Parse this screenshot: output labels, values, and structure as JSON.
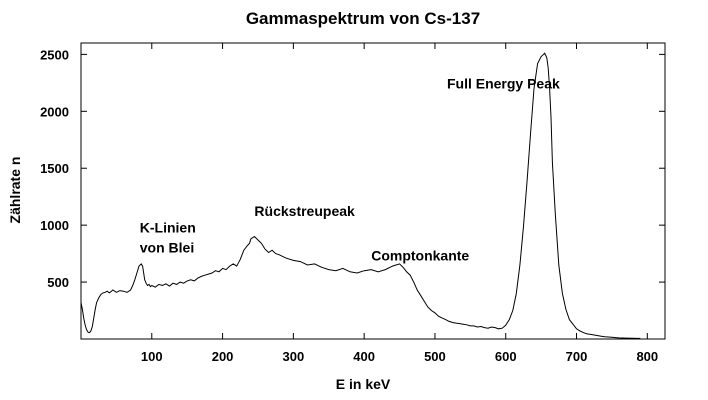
{
  "chart_data": {
    "type": "line",
    "title": "Gammaspektrum von Cs-137",
    "xlabel": "E in keV",
    "ylabel": "Zählrate n",
    "xlim": [
      0,
      825
    ],
    "ylim": [
      0,
      2600
    ],
    "xticks": [
      100,
      200,
      300,
      400,
      500,
      600,
      700,
      800
    ],
    "yticks": [
      500,
      1000,
      1500,
      2000,
      2500
    ],
    "grid": false,
    "annotations": [
      {
        "lines": [
          "Full Energy Peak"
        ],
        "x": 517,
        "y": 2200
      },
      {
        "lines": [
          "K-Linien",
          "von Blei"
        ],
        "x": 83,
        "y": 935
      },
      {
        "lines": [
          "Rückstreupeak"
        ],
        "x": 245,
        "y": 1080
      },
      {
        "lines": [
          "Comptonkante"
        ],
        "x": 410,
        "y": 690
      }
    ],
    "series": [
      {
        "color": "#000000",
        "x": [
          0,
          2,
          4,
          6,
          8,
          10,
          12,
          14,
          16,
          18,
          20,
          22,
          25,
          28,
          31,
          34,
          37,
          40,
          45,
          50,
          55,
          60,
          65,
          70,
          73,
          76,
          79,
          82,
          85,
          87,
          88,
          89,
          90,
          92,
          94,
          96,
          98,
          100,
          105,
          110,
          115,
          120,
          125,
          130,
          135,
          140,
          145,
          150,
          155,
          160,
          165,
          170,
          175,
          180,
          185,
          190,
          195,
          200,
          205,
          210,
          215,
          220,
          225,
          230,
          235,
          238,
          240,
          245,
          250,
          255,
          260,
          265,
          270,
          275,
          280,
          290,
          300,
          310,
          320,
          330,
          340,
          350,
          360,
          370,
          380,
          390,
          400,
          410,
          420,
          430,
          440,
          445,
          450,
          455,
          460,
          465,
          470,
          475,
          480,
          485,
          490,
          495,
          500,
          505,
          510,
          515,
          520,
          525,
          530,
          535,
          540,
          545,
          550,
          555,
          560,
          565,
          570,
          575,
          580,
          585,
          590,
          595,
          600,
          605,
          610,
          615,
          620,
          625,
          630,
          635,
          640,
          645,
          650,
          655,
          658,
          660,
          662,
          664,
          666,
          670,
          675,
          680,
          685,
          690,
          695,
          700,
          705,
          710,
          715,
          720,
          725,
          730,
          735,
          740,
          745,
          750,
          755,
          760,
          770,
          780,
          790
        ],
        "y": [
          320,
          260,
          180,
          120,
          80,
          60,
          55,
          70,
          110,
          180,
          260,
          320,
          360,
          390,
          405,
          410,
          420,
          405,
          430,
          410,
          425,
          420,
          410,
          430,
          470,
          520,
          580,
          640,
          660,
          640,
          600,
          560,
          520,
          490,
          470,
          480,
          460,
          470,
          455,
          480,
          470,
          485,
          465,
          490,
          480,
          500,
          490,
          510,
          520,
          510,
          535,
          550,
          560,
          570,
          580,
          600,
          590,
          620,
          610,
          640,
          660,
          640,
          700,
          780,
          820,
          840,
          880,
          900,
          870,
          840,
          790,
          760,
          780,
          750,
          740,
          710,
          690,
          680,
          650,
          660,
          630,
          610,
          600,
          620,
          590,
          580,
          600,
          610,
          590,
          610,
          640,
          650,
          660,
          630,
          590,
          560,
          500,
          430,
          380,
          330,
          280,
          250,
          230,
          200,
          185,
          170,
          155,
          145,
          140,
          135,
          130,
          125,
          115,
          115,
          105,
          110,
          100,
          95,
          105,
          100,
          90,
          95,
          120,
          170,
          250,
          400,
          650,
          980,
          1380,
          1800,
          2200,
          2420,
          2480,
          2510,
          2470,
          2380,
          2200,
          1950,
          1550,
          1100,
          650,
          400,
          260,
          170,
          130,
          90,
          70,
          55,
          45,
          40,
          35,
          30,
          25,
          20,
          18,
          15,
          12,
          10,
          8,
          6,
          5
        ]
      }
    ]
  }
}
